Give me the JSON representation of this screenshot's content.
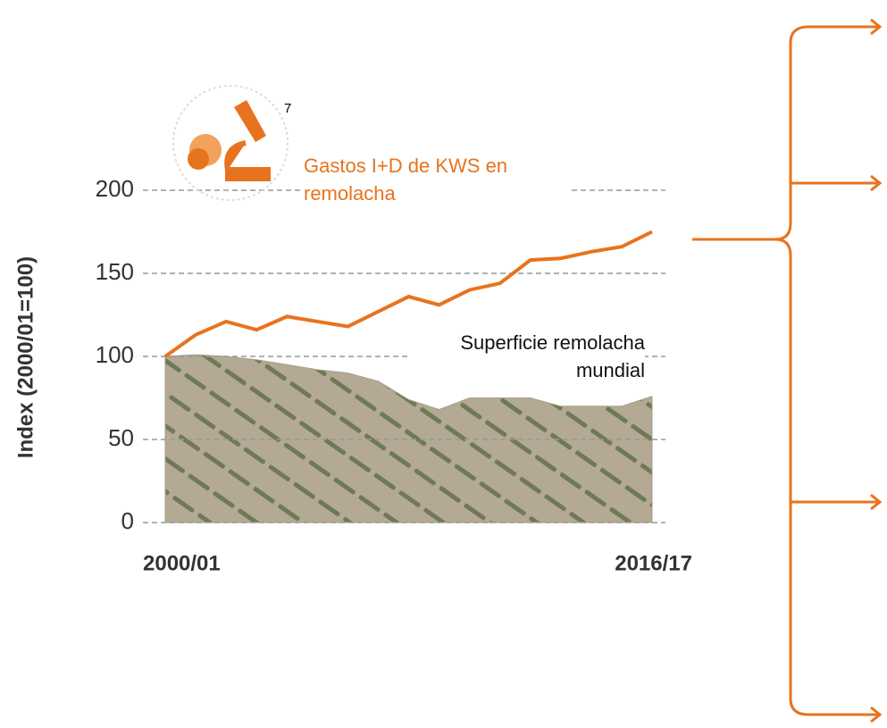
{
  "chart_data": {
    "type": "line-area",
    "y_label": "Index (2000/01=100)",
    "annotation": "7",
    "categories": [
      "2000/01",
      null,
      null,
      null,
      null,
      null,
      null,
      null,
      null,
      null,
      null,
      null,
      null,
      null,
      null,
      null,
      "2016/17"
    ],
    "series": [
      {
        "name": "Gastos I+D de KWS en remolacha",
        "kind": "line",
        "color": "#e8731e",
        "values": [
          100,
          113,
          121,
          116,
          124,
          121,
          118,
          127,
          136,
          131,
          140,
          144,
          158,
          159,
          163,
          166,
          175
        ]
      },
      {
        "name": "Superficie remolacha mundial",
        "kind": "area",
        "color": "#a89d8a",
        "values": [
          100,
          101,
          100,
          98,
          95,
          92,
          90,
          85,
          74,
          68,
          75,
          75,
          75,
          70,
          70,
          70,
          76
        ]
      }
    ],
    "ylim": [
      0,
      200
    ],
    "yticks": [
      0,
      50,
      100,
      150,
      200
    ],
    "grid": true
  }
}
